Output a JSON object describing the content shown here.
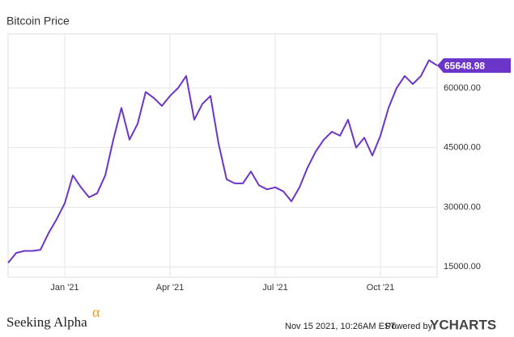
{
  "chart_data": {
    "type": "line",
    "title": "Bitcoin Price",
    "categories": [
      null,
      null,
      null,
      null,
      null,
      null,
      null,
      "Jan '21",
      null,
      null,
      null,
      null,
      null,
      null,
      null,
      null,
      null,
      null,
      null,
      null,
      "Apr '21",
      null,
      null,
      null,
      null,
      null,
      null,
      null,
      null,
      null,
      null,
      null,
      null,
      "Jul '21",
      null,
      null,
      null,
      null,
      null,
      null,
      null,
      null,
      null,
      null,
      null,
      null,
      "Oct '21",
      null,
      null,
      null,
      null,
      null,
      null,
      null
    ],
    "values": [
      16000,
      18500,
      19000,
      19000,
      19300,
      23500,
      27000,
      31000,
      38000,
      35000,
      32500,
      33500,
      38000,
      47000,
      55000,
      47000,
      51000,
      59000,
      57500,
      55500,
      58000,
      60000,
      63000,
      52000,
      56000,
      58000,
      46000,
      37000,
      36000,
      36000,
      39000,
      35500,
      34500,
      35000,
      34000,
      31500,
      35000,
      40000,
      44000,
      47000,
      49000,
      48000,
      52000,
      45000,
      47500,
      43000,
      48000,
      55000,
      60000,
      63000,
      61000,
      63000,
      67000,
      65648.98
    ],
    "color": "#6c35c9",
    "ylim": [
      12400,
      73600
    ],
    "yticks": [
      {
        "value": 15000,
        "label": "15000.00"
      },
      {
        "value": 30000,
        "label": "30000.00"
      },
      {
        "value": 45000,
        "label": "45000.00"
      },
      {
        "value": 60000,
        "label": "60000.00"
      }
    ],
    "grid": true
  },
  "footer": {
    "brand": "Seeking Alpha",
    "brand_mark": "α",
    "timestamp": "Nov 15 2021, 10:26AM EST.",
    "powered": "Powered by",
    "provider": "YCHARTS"
  }
}
